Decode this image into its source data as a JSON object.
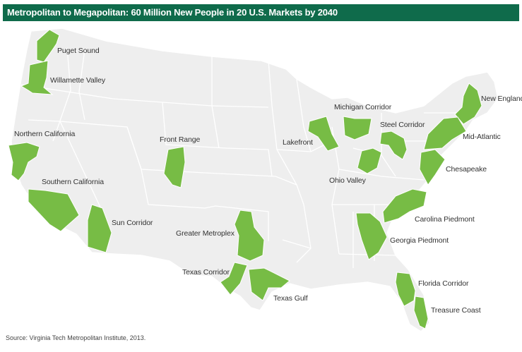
{
  "title": "Metropolitan to Megapolitan: 60 Million New People in 20 U.S. Markets by 2040",
  "source": "Source:  Virginia Tech Metropolitan Institute, 2013.",
  "colors": {
    "title_bg": "#0f6b4b",
    "land": "#eeeeee",
    "border": "#ffffff",
    "region": "#77bc45"
  },
  "regions": {
    "puget_sound": "Puget Sound",
    "willamette_valley": "Willamette Valley",
    "northern_california": "Northern California",
    "southern_california": "Southern California",
    "sun_corridor": "Sun Corridor",
    "front_range": "Front Range",
    "greater_metroplex": "Greater Metroplex",
    "texas_corridor": "Texas Corridor",
    "texas_gulf": "Texas Gulf",
    "lakefront": "Lakefront",
    "michigan_corridor": "Michigan Corridor",
    "steel_corridor": "Steel Corridor",
    "ohio_valley": "Ohio Valley",
    "new_england": "New England",
    "mid_atlantic": "Mid-Atlantic",
    "chesapeake": "Chesapeake",
    "carolina_piedmont": "Carolina Piedmont",
    "georgia_piedmont": "Georgia Piedmont",
    "florida_corridor": "Florida Corridor",
    "treasure_coast": "Treasure Coast"
  }
}
